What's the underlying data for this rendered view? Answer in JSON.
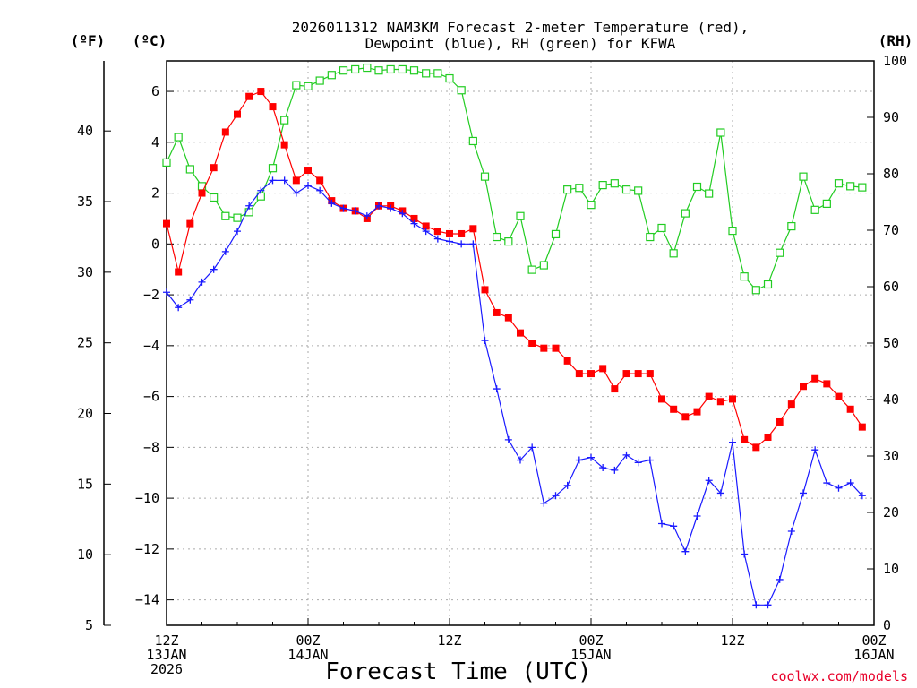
{
  "chart_data": {
    "type": "line",
    "title_line1": "2026011312 NAM3KM Forecast 2-meter Temperature (red),",
    "title_line2": "Dewpoint (blue), RH (green) for KFWA",
    "xlabel": "Forecast Time (UTC)",
    "credit": "coolwx.com/models",
    "unit_f": "(ºF)",
    "unit_c": "(ºC)",
    "unit_rh": "(RH)",
    "hours_range": [
      0,
      60
    ],
    "c_range": [
      -15,
      7.2
    ],
    "rh_range": [
      0,
      100
    ],
    "x_ticks": [
      {
        "hour": 0,
        "lines": [
          "12Z",
          "13JAN",
          "2026"
        ]
      },
      {
        "hour": 12,
        "lines": [
          "00Z",
          "14JAN"
        ]
      },
      {
        "hour": 24,
        "lines": [
          "12Z",
          ""
        ]
      },
      {
        "hour": 36,
        "lines": [
          "00Z",
          "15JAN"
        ]
      },
      {
        "hour": 48,
        "lines": [
          "12Z",
          ""
        ]
      },
      {
        "hour": 60,
        "lines": [
          "00Z",
          "16JAN"
        ]
      }
    ],
    "c_ticks": [
      6,
      4,
      2,
      0,
      -2,
      -4,
      -6,
      -8,
      -10,
      -12,
      -14
    ],
    "f_ticks": [
      40,
      35,
      30,
      25,
      20,
      15,
      10,
      5
    ],
    "rh_ticks": [
      100,
      90,
      80,
      70,
      60,
      50,
      40,
      30,
      20,
      10,
      0
    ],
    "series": [
      {
        "name": "RH",
        "color": "#22cc22",
        "axis": "rh",
        "marker": "open-square",
        "values": [
          82,
          86.5,
          80.8,
          77.8,
          75.8,
          72.5,
          72.2,
          73.2,
          76.0,
          81.0,
          89.5,
          95.7,
          95.5,
          96.5,
          97.5,
          98.3,
          98.5,
          98.8,
          98.3,
          98.5,
          98.5,
          98.3,
          97.8,
          97.8,
          96.9,
          94.8,
          85.8,
          79.5,
          68.8,
          68.0,
          72.5,
          63.0,
          63.8,
          69.3,
          77.2,
          77.5,
          74.5,
          78.0,
          78.3,
          77.2,
          77.0,
          68.8,
          70.4,
          65.9,
          73.0,
          77.7,
          76.5,
          87.3,
          69.9,
          61.8,
          59.4,
          60.4,
          66.0,
          70.7,
          79.5,
          73.6,
          74.7,
          78.3,
          77.8,
          77.6
        ]
      },
      {
        "name": "Temperature",
        "color": "#ff0000",
        "axis": "c",
        "marker": "filled-square",
        "values": [
          0.8,
          -1.1,
          0.8,
          2.0,
          3.0,
          4.4,
          5.1,
          5.8,
          6.0,
          5.4,
          3.9,
          2.5,
          2.9,
          2.5,
          1.7,
          1.4,
          1.3,
          1.0,
          1.5,
          1.5,
          1.3,
          1.0,
          0.7,
          0.5,
          0.4,
          0.4,
          0.6,
          -1.8,
          -2.7,
          -2.9,
          -3.5,
          -3.9,
          -4.1,
          -4.1,
          -4.6,
          -5.1,
          -5.1,
          -4.9,
          -5.7,
          -5.1,
          -5.1,
          -5.1,
          -6.1,
          -6.5,
          -6.8,
          -6.6,
          -6.0,
          -6.2,
          -6.1,
          -7.7,
          -8.0,
          -7.6,
          -7.0,
          -6.3,
          -5.6,
          -5.3,
          -5.5,
          -6.0,
          -6.5,
          -7.2
        ]
      },
      {
        "name": "Dewpoint",
        "color": "#1a1aff",
        "axis": "c",
        "marker": "plus",
        "values": [
          -1.9,
          -2.5,
          -2.2,
          -1.5,
          -1.0,
          -0.3,
          0.5,
          1.5,
          2.1,
          2.5,
          2.5,
          2.0,
          2.3,
          2.1,
          1.6,
          1.4,
          1.3,
          1.1,
          1.5,
          1.4,
          1.2,
          0.8,
          0.5,
          0.2,
          0.1,
          0.0,
          0.0,
          -3.8,
          -5.7,
          -7.7,
          -8.5,
          -8.0,
          -10.2,
          -9.9,
          -9.5,
          -8.5,
          -8.4,
          -8.8,
          -8.9,
          -8.3,
          -8.6,
          -8.5,
          -11.0,
          -11.1,
          -12.1,
          -10.7,
          -9.3,
          -9.8,
          -7.8,
          -12.2,
          -14.2,
          -14.2,
          -13.2,
          -11.3,
          -9.8,
          -8.1,
          -9.4,
          -9.6,
          -9.4,
          -9.9
        ]
      }
    ]
  }
}
